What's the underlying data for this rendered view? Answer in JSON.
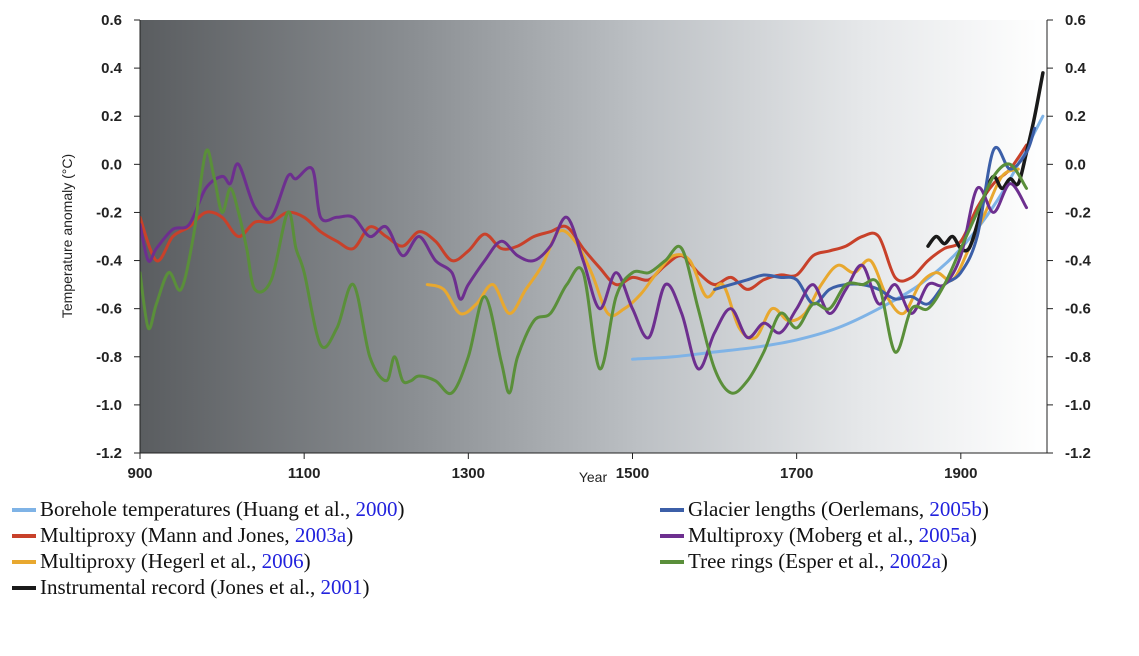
{
  "chart_data": {
    "type": "line",
    "xlabel": "Year",
    "ylabel": "Temperature anomaly (°C)",
    "xlim": [
      900,
      2005
    ],
    "ylim": [
      -1.2,
      0.6
    ],
    "x_ticks": [
      900,
      1100,
      1300,
      1500,
      1700,
      1900
    ],
    "y_ticks": [
      -1.2,
      -1.0,
      -0.8,
      -0.6,
      -0.4,
      -0.2,
      0.0,
      0.2,
      0.4,
      0.6
    ],
    "y_tick_labels": [
      "-1.2",
      "-1.0",
      "-0.8",
      "-0.6",
      "-0.4",
      "-0.2",
      "0.0",
      "0.2",
      "0.4",
      "0.6"
    ],
    "background": "gradient from dark grey (900) to white (2000)",
    "grid": false,
    "series": [
      {
        "name": "Borehole temperatures (Huang et al., 2000)",
        "label": "Borehole temperatures (Huang et al., ",
        "ref": "2000",
        "ref_suffix": ")",
        "color": "#7fb3e6",
        "x": [
          1500,
          1550,
          1600,
          1650,
          1700,
          1750,
          1800,
          1850,
          1900,
          1950,
          2000
        ],
        "y": [
          -0.81,
          -0.8,
          -0.78,
          -0.76,
          -0.73,
          -0.68,
          -0.6,
          -0.5,
          -0.35,
          -0.12,
          0.2
        ]
      },
      {
        "name": "Multiproxy (Mann and Jones, 2003a)",
        "label": "Multiproxy (Mann and Jones, ",
        "ref": "2003a",
        "ref_suffix": ")",
        "color": "#c8412a",
        "x": [
          900,
          920,
          940,
          960,
          980,
          1000,
          1020,
          1040,
          1060,
          1080,
          1100,
          1120,
          1140,
          1160,
          1180,
          1200,
          1220,
          1240,
          1260,
          1280,
          1300,
          1320,
          1340,
          1360,
          1380,
          1400,
          1420,
          1440,
          1460,
          1480,
          1500,
          1520,
          1540,
          1560,
          1580,
          1600,
          1620,
          1640,
          1660,
          1680,
          1700,
          1720,
          1740,
          1760,
          1780,
          1800,
          1820,
          1840,
          1860,
          1880,
          1900,
          1920,
          1940,
          1960,
          1980
        ],
        "y": [
          -0.22,
          -0.4,
          -0.3,
          -0.26,
          -0.2,
          -0.22,
          -0.3,
          -0.24,
          -0.24,
          -0.2,
          -0.22,
          -0.28,
          -0.32,
          -0.35,
          -0.26,
          -0.3,
          -0.34,
          -0.28,
          -0.32,
          -0.4,
          -0.36,
          -0.29,
          -0.35,
          -0.34,
          -0.3,
          -0.28,
          -0.26,
          -0.35,
          -0.43,
          -0.5,
          -0.47,
          -0.48,
          -0.42,
          -0.38,
          -0.45,
          -0.5,
          -0.47,
          -0.52,
          -0.48,
          -0.46,
          -0.46,
          -0.38,
          -0.36,
          -0.34,
          -0.3,
          -0.3,
          -0.47,
          -0.47,
          -0.4,
          -0.35,
          -0.32,
          -0.18,
          -0.08,
          -0.02,
          0.08
        ]
      },
      {
        "name": "Multiproxy (Hegerl et al., 2006)",
        "label": "Multiproxy (Hegerl et al., ",
        "ref": "2006",
        "ref_suffix": ")",
        "color": "#e8a82f",
        "x": [
          1250,
          1270,
          1290,
          1310,
          1330,
          1350,
          1370,
          1390,
          1410,
          1430,
          1450,
          1470,
          1490,
          1510,
          1530,
          1550,
          1570,
          1590,
          1610,
          1630,
          1650,
          1670,
          1690,
          1710,
          1730,
          1750,
          1770,
          1790,
          1810,
          1830,
          1850,
          1870,
          1890,
          1910,
          1930,
          1950,
          1970
        ],
        "y": [
          -0.5,
          -0.52,
          -0.62,
          -0.58,
          -0.5,
          -0.62,
          -0.52,
          -0.42,
          -0.28,
          -0.32,
          -0.45,
          -0.62,
          -0.6,
          -0.54,
          -0.45,
          -0.38,
          -0.4,
          -0.55,
          -0.5,
          -0.68,
          -0.72,
          -0.6,
          -0.65,
          -0.62,
          -0.5,
          -0.42,
          -0.45,
          -0.4,
          -0.55,
          -0.62,
          -0.5,
          -0.45,
          -0.48,
          -0.35,
          -0.2,
          -0.05,
          -0.02
        ]
      },
      {
        "name": "Instrumental record (Jones et al., 2001)",
        "label": "Instrumental record (Jones et al., ",
        "ref": "2001",
        "ref_suffix": ")",
        "color": "#1a1a1a",
        "x": [
          1860,
          1870,
          1880,
          1890,
          1900,
          1910,
          1920,
          1930,
          1940,
          1950,
          1960,
          1970,
          1980,
          1990,
          2000
        ],
        "y": [
          -0.34,
          -0.3,
          -0.33,
          -0.3,
          -0.35,
          -0.35,
          -0.25,
          -0.12,
          -0.05,
          -0.1,
          -0.06,
          -0.08,
          0.05,
          0.2,
          0.38
        ]
      },
      {
        "name": "Glacier lengths (Oerlemans, 2005b)",
        "label": "Glacier lengths (Oerlemans, ",
        "ref": "2005b",
        "ref_suffix": ")",
        "color": "#3c5fa8",
        "x": [
          1600,
          1620,
          1640,
          1660,
          1680,
          1700,
          1720,
          1740,
          1760,
          1780,
          1800,
          1820,
          1840,
          1860,
          1880,
          1900,
          1920,
          1940,
          1960,
          1980,
          1990
        ],
        "y": [
          -0.52,
          -0.5,
          -0.48,
          -0.46,
          -0.47,
          -0.48,
          -0.58,
          -0.52,
          -0.5,
          -0.5,
          -0.52,
          -0.56,
          -0.55,
          -0.58,
          -0.5,
          -0.45,
          -0.3,
          0.06,
          -0.02,
          0.05,
          0.15
        ]
      },
      {
        "name": "Multiproxy (Moberg et al., 2005a)",
        "label": "Multiproxy (Moberg et al., ",
        "ref": "2005a",
        "ref_suffix": ")",
        "color": "#6d2f8f",
        "x": [
          900,
          910,
          920,
          940,
          960,
          980,
          1000,
          1010,
          1020,
          1040,
          1060,
          1080,
          1090,
          1110,
          1120,
          1140,
          1160,
          1180,
          1200,
          1220,
          1240,
          1260,
          1280,
          1290,
          1300,
          1320,
          1340,
          1360,
          1380,
          1400,
          1420,
          1440,
          1460,
          1480,
          1500,
          1520,
          1540,
          1560,
          1580,
          1600,
          1620,
          1640,
          1660,
          1680,
          1700,
          1720,
          1740,
          1760,
          1780,
          1800,
          1820,
          1840,
          1860,
          1880,
          1900,
          1920,
          1940,
          1960,
          1980
        ],
        "y": [
          -0.25,
          -0.4,
          -0.35,
          -0.27,
          -0.25,
          -0.1,
          -0.05,
          -0.08,
          0.0,
          -0.18,
          -0.22,
          -0.05,
          -0.06,
          -0.02,
          -0.22,
          -0.22,
          -0.22,
          -0.3,
          -0.26,
          -0.38,
          -0.3,
          -0.4,
          -0.45,
          -0.56,
          -0.5,
          -0.4,
          -0.32,
          -0.38,
          -0.4,
          -0.34,
          -0.22,
          -0.4,
          -0.6,
          -0.45,
          -0.6,
          -0.72,
          -0.5,
          -0.62,
          -0.85,
          -0.7,
          -0.6,
          -0.72,
          -0.66,
          -0.7,
          -0.6,
          -0.5,
          -0.62,
          -0.52,
          -0.42,
          -0.58,
          -0.5,
          -0.62,
          -0.5,
          -0.5,
          -0.38,
          -0.1,
          -0.2,
          -0.08,
          -0.18
        ]
      },
      {
        "name": "Tree rings (Esper et al., 2002a)",
        "label": "Tree rings (Esper et al., ",
        "ref": "2002a",
        "ref_suffix": ")",
        "color": "#5a8f3a",
        "x": [
          900,
          910,
          920,
          935,
          950,
          965,
          980,
          990,
          1000,
          1010,
          1020,
          1030,
          1040,
          1060,
          1080,
          1090,
          1100,
          1120,
          1140,
          1160,
          1180,
          1200,
          1210,
          1220,
          1230,
          1240,
          1260,
          1280,
          1300,
          1320,
          1340,
          1350,
          1360,
          1380,
          1400,
          1420,
          1440,
          1460,
          1480,
          1500,
          1520,
          1540,
          1560,
          1580,
          1600,
          1620,
          1640,
          1660,
          1680,
          1700,
          1720,
          1740,
          1760,
          1780,
          1800,
          1820,
          1840,
          1860,
          1880,
          1900,
          1920,
          1940,
          1960,
          1980
        ],
        "y": [
          -0.45,
          -0.68,
          -0.58,
          -0.45,
          -0.52,
          -0.3,
          0.05,
          -0.05,
          -0.2,
          -0.1,
          -0.2,
          -0.35,
          -0.52,
          -0.48,
          -0.2,
          -0.35,
          -0.45,
          -0.75,
          -0.68,
          -0.5,
          -0.8,
          -0.9,
          -0.8,
          -0.9,
          -0.9,
          -0.88,
          -0.9,
          -0.95,
          -0.8,
          -0.55,
          -0.82,
          -0.95,
          -0.8,
          -0.65,
          -0.62,
          -0.5,
          -0.45,
          -0.85,
          -0.55,
          -0.45,
          -0.45,
          -0.4,
          -0.35,
          -0.6,
          -0.85,
          -0.95,
          -0.9,
          -0.78,
          -0.62,
          -0.68,
          -0.58,
          -0.6,
          -0.5,
          -0.5,
          -0.5,
          -0.78,
          -0.6,
          -0.6,
          -0.5,
          -0.35,
          -0.2,
          -0.05,
          0.0,
          -0.1
        ]
      }
    ]
  }
}
